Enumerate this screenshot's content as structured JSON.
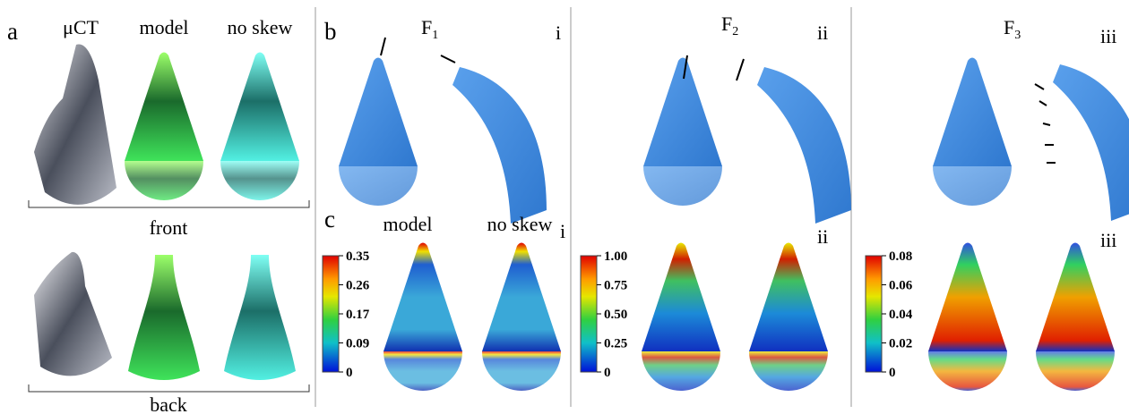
{
  "panel_a": {
    "label": "a",
    "columns": [
      "μCT",
      "model",
      "no skew"
    ],
    "front": "front",
    "back": "back"
  },
  "panel_b": {
    "label": "b",
    "forces": [
      {
        "name": "F",
        "sub": "1",
        "roman": "i"
      },
      {
        "name": "F",
        "sub": "2",
        "roman": "ii"
      },
      {
        "name": "F",
        "sub": "3",
        "roman": "iii"
      }
    ]
  },
  "panel_c": {
    "label": "c",
    "columns": [
      "model",
      "no skew"
    ],
    "colorbars": [
      {
        "roman": "i",
        "ticks": [
          "0.35",
          "0.26",
          "0.17",
          "0.09",
          "0"
        ]
      },
      {
        "roman": "ii",
        "ticks": [
          "1.00",
          "0.75",
          "0.50",
          "0.25",
          "0"
        ]
      },
      {
        "roman": "iii",
        "ticks": [
          "0.08",
          "0.06",
          "0.04",
          "0.02",
          "0"
        ]
      }
    ]
  }
}
